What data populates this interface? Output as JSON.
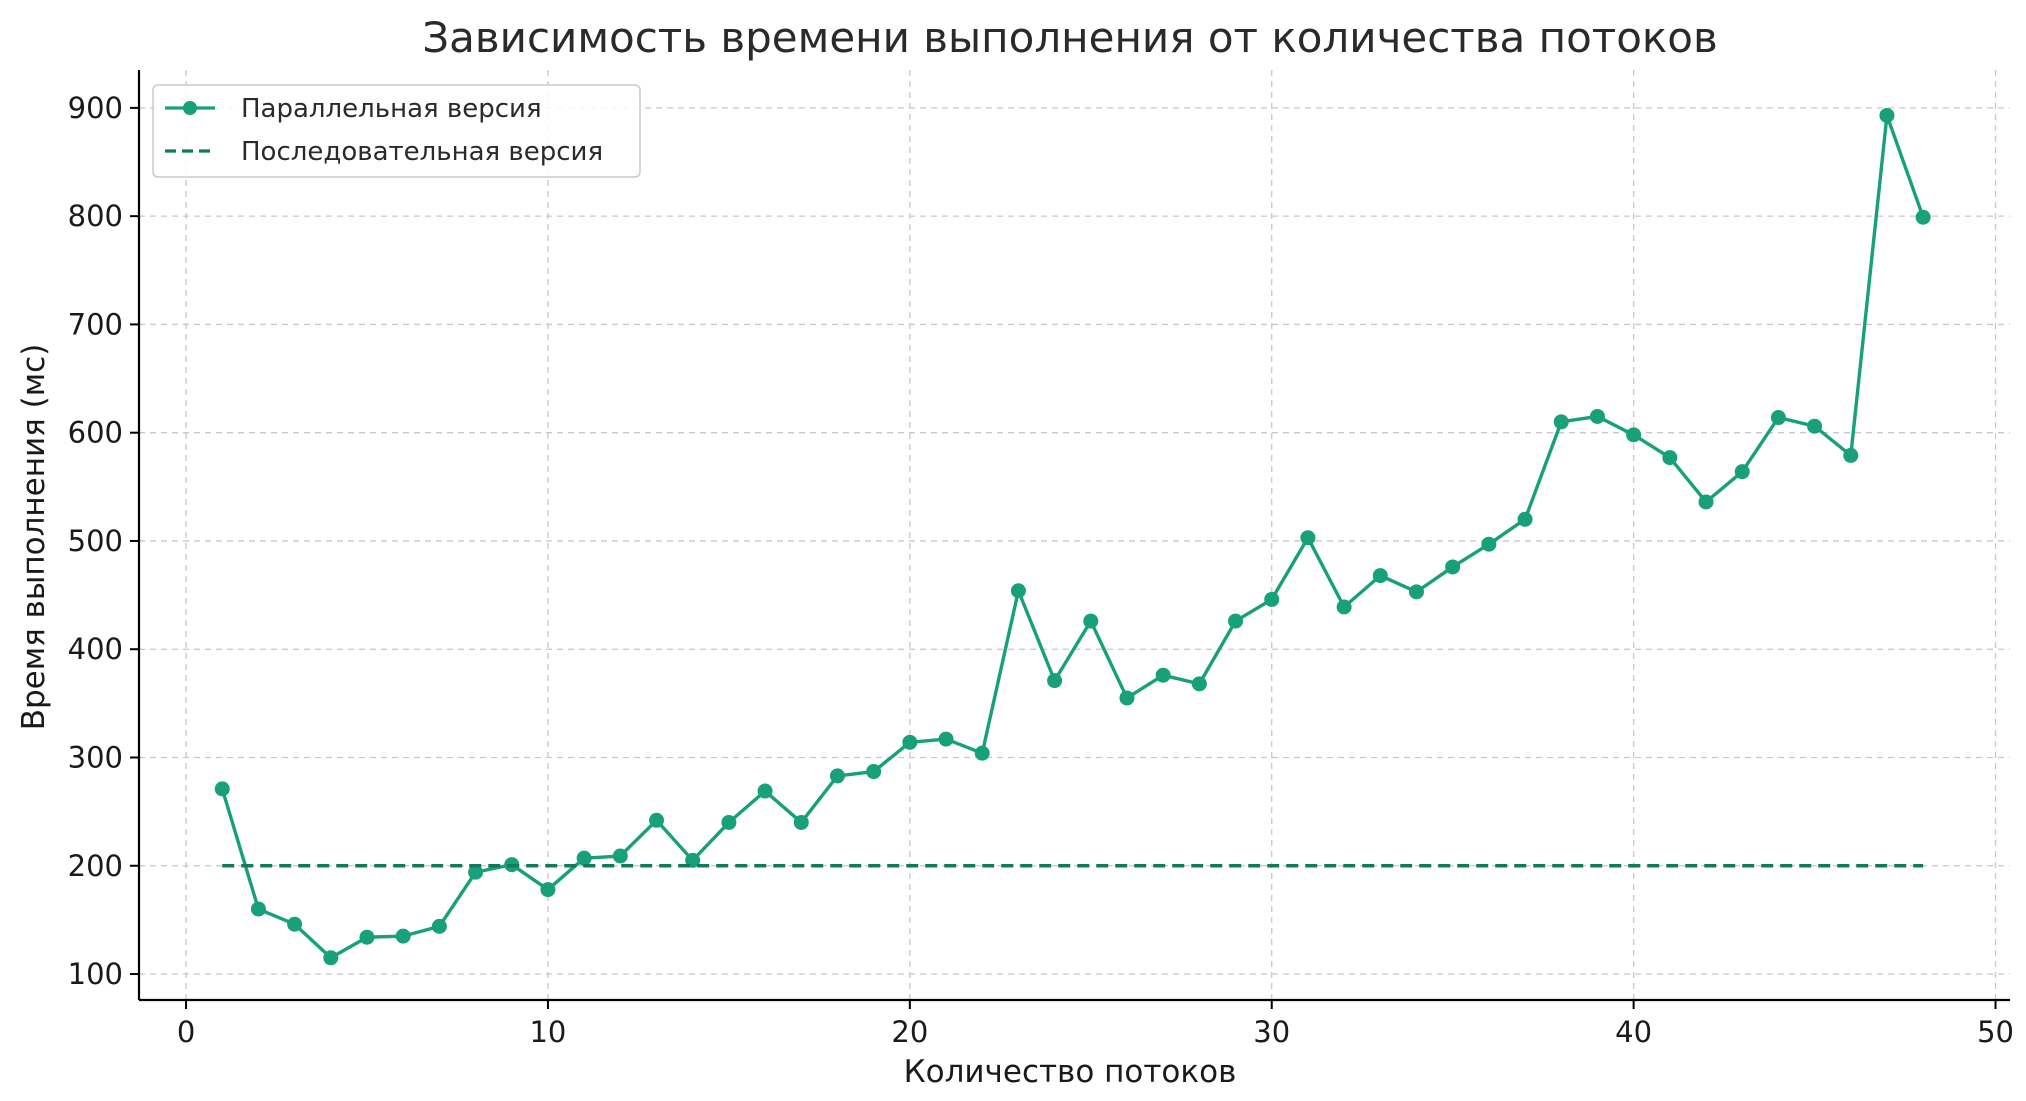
{
  "chart_data": {
    "type": "line",
    "title": "Зависимость времени выполнения от количества потоков",
    "xlabel": "Количество потоков",
    "ylabel": "Время выполнения (мс)",
    "xlim": [
      -1.3,
      50.4
    ],
    "ylim": [
      76,
      935
    ],
    "xticks": [
      0,
      10,
      20,
      30,
      40,
      50
    ],
    "yticks": [
      100,
      200,
      300,
      400,
      500,
      600,
      700,
      800,
      900
    ],
    "grid": true,
    "legend_position": "top-left",
    "x": [
      1,
      2,
      3,
      4,
      5,
      6,
      7,
      8,
      9,
      10,
      11,
      12,
      13,
      14,
      15,
      16,
      17,
      18,
      19,
      20,
      21,
      22,
      23,
      24,
      25,
      26,
      27,
      28,
      29,
      30,
      31,
      32,
      33,
      34,
      35,
      36,
      37,
      38,
      39,
      40,
      41,
      42,
      43,
      44,
      45,
      46,
      47,
      48
    ],
    "series": [
      {
        "name": "Параллельная версия",
        "color": "#17a07a",
        "style": "solid-markers",
        "values": [
          271,
          160,
          146,
          115,
          134,
          135,
          144,
          194,
          201,
          178,
          207,
          209,
          242,
          205,
          240,
          269,
          240,
          283,
          287,
          314,
          317,
          304,
          454,
          371,
          426,
          355,
          376,
          368,
          426,
          446,
          503,
          439,
          468,
          453,
          476,
          497,
          520,
          610,
          615,
          598,
          577,
          536,
          564,
          614,
          606,
          579,
          893,
          799
        ]
      },
      {
        "name": "Последовательная версия",
        "color": "#117a5c",
        "style": "dashed",
        "values": [
          200,
          200,
          200,
          200,
          200,
          200,
          200,
          200,
          200,
          200,
          200,
          200,
          200,
          200,
          200,
          200,
          200,
          200,
          200,
          200,
          200,
          200,
          200,
          200,
          200,
          200,
          200,
          200,
          200,
          200,
          200,
          200,
          200,
          200,
          200,
          200,
          200,
          200,
          200,
          200,
          200,
          200,
          200,
          200,
          200,
          200,
          200,
          200
        ]
      }
    ]
  }
}
